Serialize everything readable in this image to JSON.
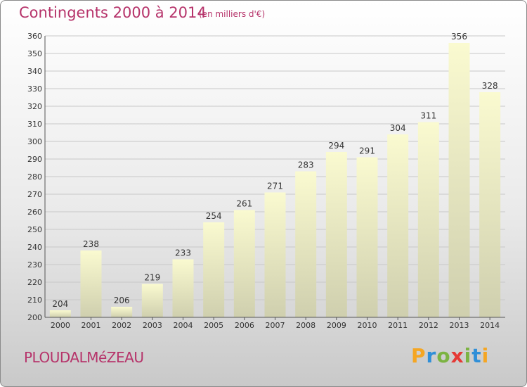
{
  "title": "Contingents 2000 à 2014",
  "subtitle": "(en milliers d'€)",
  "commune": "PLOUDALMéZEAU",
  "logo": {
    "letters": [
      "P",
      "r",
      "o",
      "x",
      "i",
      "t",
      "i"
    ],
    "colors": [
      "#f5a623",
      "#2f8fd8",
      "#7cb342",
      "#e53935",
      "#7cb342",
      "#2f8fd8",
      "#f5a623"
    ]
  },
  "colors": {
    "bar_top": "#fafad0",
    "bar_bottom": "#cfcfae",
    "grid": "#c8c8c8"
  },
  "chart_data": {
    "type": "bar",
    "categories": [
      "2000",
      "2001",
      "2002",
      "2003",
      "2004",
      "2005",
      "2006",
      "2007",
      "2008",
      "2009",
      "2010",
      "2011",
      "2012",
      "2013",
      "2014"
    ],
    "values": [
      204,
      238,
      206,
      219,
      233,
      254,
      261,
      271,
      283,
      294,
      291,
      304,
      311,
      356,
      328
    ],
    "ylim": [
      200,
      360
    ],
    "yticks": [
      200,
      210,
      220,
      230,
      240,
      250,
      260,
      270,
      280,
      290,
      300,
      310,
      320,
      330,
      340,
      350,
      360
    ],
    "grid": true,
    "xlabel": "",
    "ylabel": ""
  }
}
